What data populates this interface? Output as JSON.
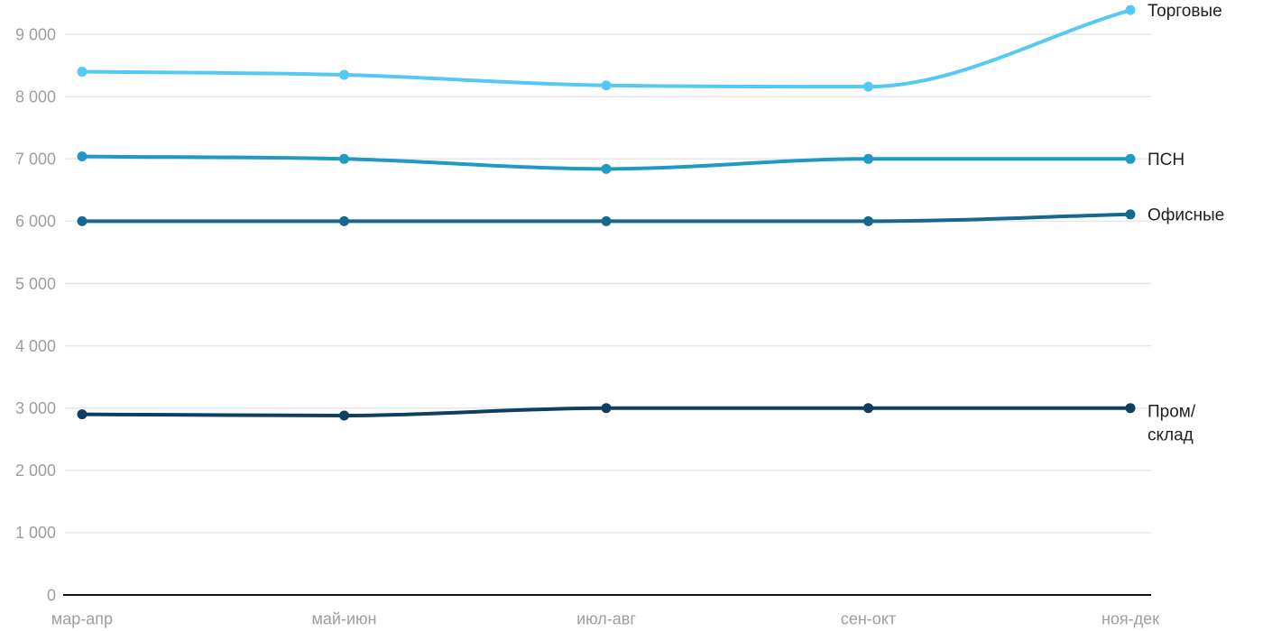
{
  "chart_data": {
    "type": "line",
    "title": "",
    "xlabel": "",
    "ylabel": "",
    "categories": [
      "мар-апр",
      "май-июн",
      "июл-авг",
      "сен-окт",
      "ноя-дек"
    ],
    "series": [
      {
        "name": "Торговые",
        "values": [
          8400,
          8350,
          8180,
          8160,
          9390
        ],
        "color": "#55c9f5",
        "label_lines": [
          "Торговые"
        ]
      },
      {
        "name": "ПСН",
        "values": [
          7040,
          7000,
          6840,
          7000,
          7000
        ],
        "color": "#2199c6",
        "label_lines": [
          "ПСН"
        ]
      },
      {
        "name": "Офисные",
        "values": [
          6000,
          6000,
          6000,
          6000,
          6110
        ],
        "color": "#156990",
        "label_lines": [
          "Офисные"
        ]
      },
      {
        "name": "Пром/склад",
        "values": [
          2900,
          2880,
          3000,
          3000,
          3000
        ],
        "color": "#0e3e60",
        "label_lines": [
          "Пром/",
          "склад"
        ]
      }
    ],
    "ylim": [
      0,
      9500
    ],
    "yticks": [
      0,
      1000,
      2000,
      3000,
      4000,
      5000,
      6000,
      7000,
      8000,
      9000
    ],
    "ytick_labels": [
      "0",
      "1 000",
      "2 000",
      "3 000",
      "4 000",
      "5 000",
      "6 000",
      "7 000",
      "8 000",
      "9 000"
    ],
    "grid": "horizontal",
    "legend_position": "right-of-last-point",
    "curve": "monotone"
  },
  "colors": {
    "background": "#ffffff",
    "gridline": "#e7e7e7",
    "axis_line": "#141414",
    "tick_text": "#9e9e9e",
    "series_label_text": "#212121"
  }
}
